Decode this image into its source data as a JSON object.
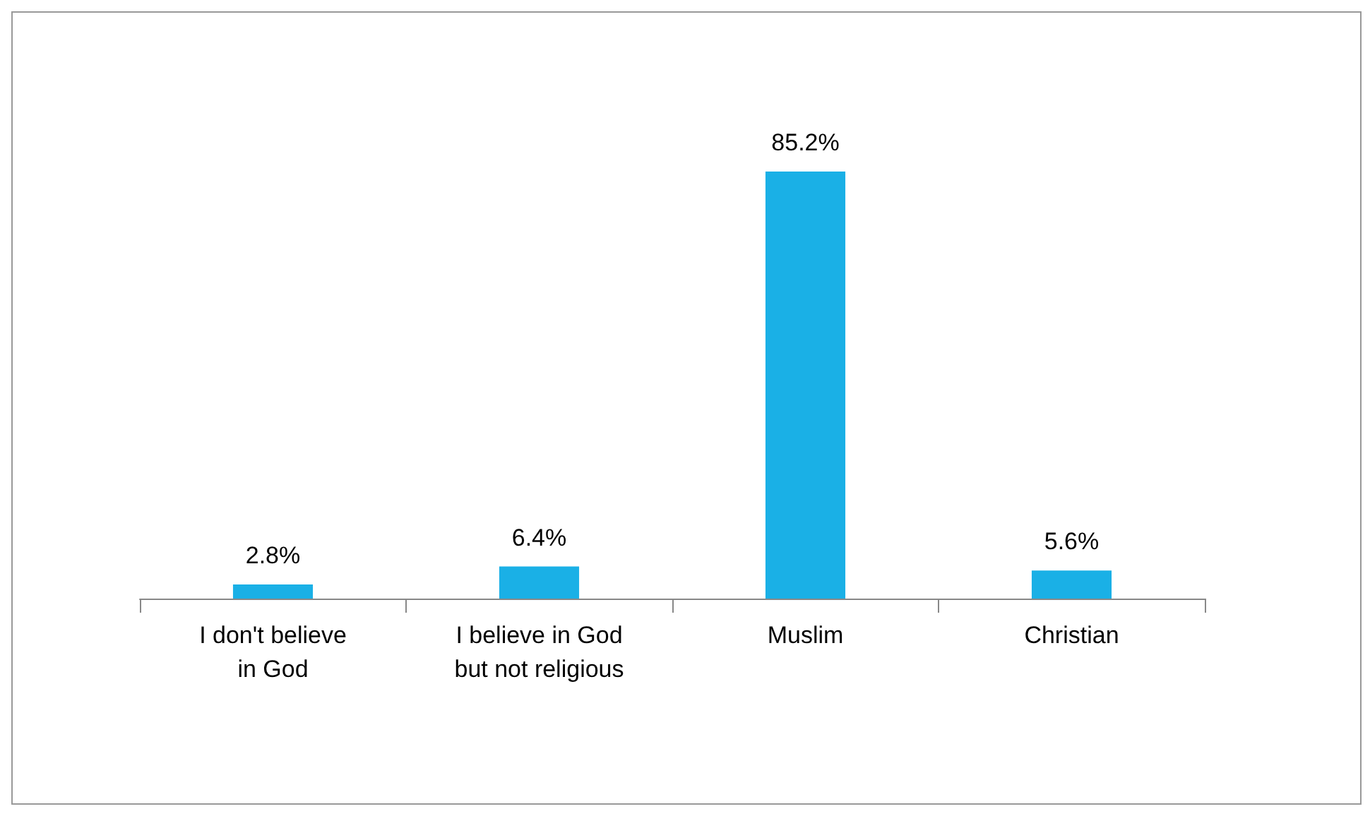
{
  "chart_data": {
    "type": "bar",
    "categories": [
      "I don't believe in God",
      "I believe in God but not religious",
      "Muslim",
      "Christian"
    ],
    "values": [
      2.8,
      6.4,
      85.2,
      5.6
    ],
    "value_labels": [
      "2.8%",
      "6.4%",
      "85.2%",
      "5.6%"
    ],
    "color": "#1ab0e6"
  }
}
